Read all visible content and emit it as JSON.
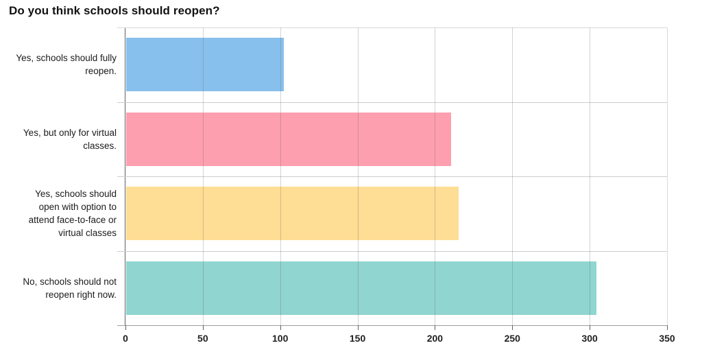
{
  "title": "Do you think schools should reopen?",
  "chart_data": {
    "type": "bar",
    "orientation": "horizontal",
    "title": "Do you think schools should reopen?",
    "xlabel": "",
    "ylabel": "",
    "categories": [
      "Yes, schools should fully reopen.",
      "Yes, but only for virtual classes.",
      "Yes, schools should open with option to attend face-to-face or virtual classes",
      "No, schools should not reopen right now."
    ],
    "values": [
      102,
      210,
      215,
      304
    ],
    "bar_colors": [
      "#87c0ec",
      "#fd9fae",
      "#fedd94",
      "#90d5cf"
    ],
    "xlim": [
      0,
      350
    ],
    "x_ticks": [
      0,
      50,
      100,
      150,
      200,
      250,
      300,
      350
    ],
    "grid": true,
    "legend": false
  }
}
